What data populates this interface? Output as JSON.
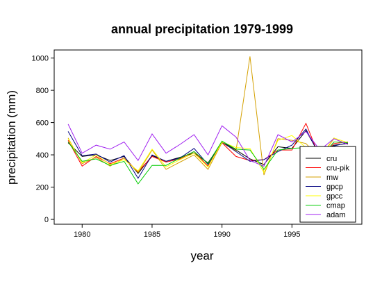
{
  "chart_data": {
    "type": "line",
    "title": "annual precipitation 1979-1999",
    "xlabel": "year",
    "ylabel": "precipitation (mm)",
    "xlim": [
      1978,
      2000
    ],
    "ylim": [
      -30,
      1050
    ],
    "x_ticks": [
      1980,
      1985,
      1990,
      1995
    ],
    "y_ticks": [
      0,
      200,
      400,
      600,
      800,
      1000
    ],
    "grid": false,
    "legend_position": "bottom-right",
    "x": [
      1979,
      1980,
      1981,
      1982,
      1983,
      1984,
      1985,
      1986,
      1987,
      1988,
      1989,
      1990,
      1991,
      1992,
      1993,
      1994,
      1995,
      1996,
      1997,
      1998,
      1999
    ],
    "series": [
      {
        "name": "cru",
        "color": "#000000",
        "values": [
          475,
          390,
          400,
          365,
          390,
          285,
          395,
          360,
          385,
          410,
          350,
          480,
          430,
          375,
          340,
          450,
          440,
          550,
          400,
          460,
          470
        ]
      },
      {
        "name": "cru-pik",
        "color": "#ff0000",
        "values": [
          490,
          330,
          390,
          345,
          380,
          295,
          390,
          355,
          375,
          420,
          330,
          475,
          390,
          365,
          370,
          430,
          430,
          595,
          380,
          470,
          480
        ]
      },
      {
        "name": "mw",
        "color": "#d4a000",
        "values": [
          505,
          345,
          385,
          330,
          380,
          290,
          430,
          310,
          355,
          400,
          310,
          475,
          425,
          1010,
          275,
          500,
          490,
          470,
          380,
          500,
          465
        ]
      },
      {
        "name": "gpcp",
        "color": "#000080",
        "values": [
          545,
          395,
          405,
          355,
          395,
          255,
          400,
          360,
          380,
          440,
          340,
          480,
          420,
          360,
          370,
          420,
          460,
          560,
          390,
          455,
          475
        ]
      },
      {
        "name": "gpcc",
        "color": "#ffff00",
        "values": [
          500,
          350,
          400,
          340,
          370,
          300,
          435,
          325,
          370,
          410,
          325,
          480,
          445,
          440,
          290,
          490,
          520,
          445,
          385,
          505,
          475
        ]
      },
      {
        "name": "cmap",
        "color": "#00cc00",
        "values": [
          480,
          360,
          375,
          335,
          360,
          220,
          335,
          335,
          380,
          420,
          345,
          485,
          435,
          430,
          310,
          430,
          440,
          445,
          375,
          480,
          475
        ]
      },
      {
        "name": "adam",
        "color": "#a020f0",
        "values": [
          590,
          410,
          460,
          435,
          480,
          365,
          530,
          410,
          465,
          525,
          400,
          580,
          510,
          365,
          330,
          525,
          480,
          545,
          430,
          500,
          465
        ]
      }
    ]
  }
}
